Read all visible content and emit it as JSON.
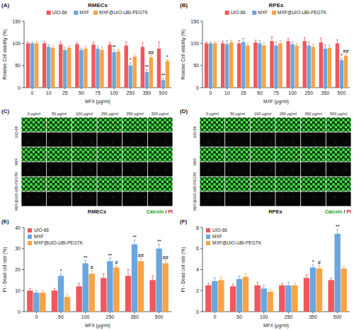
{
  "chart_data": [
    {
      "type": "bar",
      "panel_label": "(A)",
      "title": "RMECs",
      "y_label": "Relative Cell viability (%)",
      "x_label": "MFX (μg/ml)",
      "categories": [
        "0",
        "10",
        "25",
        "50",
        "75",
        "100",
        "250",
        "350",
        "500"
      ],
      "ylim": [
        0,
        150
      ],
      "yticks": [
        0,
        50,
        100,
        150
      ],
      "grid": false,
      "legend": "top",
      "series": [
        {
          "name": "UIO-66",
          "color": "#f0575c",
          "values": [
            100,
            100,
            98,
            98,
            97,
            97,
            95,
            92,
            88
          ],
          "errors": [
            3,
            4,
            5,
            4,
            6,
            5,
            8,
            10,
            15
          ]
        },
        {
          "name": "MXF",
          "color": "#6aa6e0",
          "values": [
            100,
            92,
            85,
            85,
            88,
            80,
            50,
            35,
            17
          ],
          "errors": [
            3,
            5,
            5,
            4,
            6,
            5,
            6,
            5,
            4
          ]
        },
        {
          "name": "MXF@UIO-UBI-PEGTK",
          "color": "#f7a346",
          "values": [
            100,
            90,
            90,
            88,
            85,
            82,
            70,
            68,
            60
          ],
          "errors": [
            3,
            4,
            4,
            5,
            6,
            5,
            5,
            5,
            3
          ]
        }
      ],
      "annotations": [
        {
          "text": "**",
          "category": "100",
          "series": "MXF"
        },
        {
          "text": "*",
          "category": "250",
          "series": "MXF"
        },
        {
          "text": "**",
          "category": "350",
          "series": "MXF"
        },
        {
          "text": "##",
          "category": "350",
          "series": "MXF@UIO-UBI-PEGTK"
        },
        {
          "text": "**",
          "category": "500",
          "series": "MXF"
        },
        {
          "text": "*",
          "category": "500",
          "series": "MXF@UIO-UBI-PEGTK"
        }
      ]
    },
    {
      "type": "bar",
      "panel_label": "(B)",
      "title": "RPEs",
      "y_label": "Relative Cell viability (%)",
      "x_label": "MXF (μg/ml)",
      "categories": [
        "0",
        "10",
        "25",
        "50",
        "75",
        "100",
        "250",
        "350",
        "500"
      ],
      "ylim": [
        0,
        150
      ],
      "yticks": [
        0,
        50,
        100,
        150
      ],
      "grid": false,
      "legend": "top",
      "series": [
        {
          "name": "UIO-66",
          "color": "#f0575c",
          "values": [
            100,
            100,
            100,
            102,
            105,
            105,
            105,
            102,
            100
          ],
          "errors": [
            3,
            5,
            6,
            5,
            10,
            6,
            8,
            10,
            8
          ]
        },
        {
          "name": "MXF",
          "color": "#6aa6e0",
          "values": [
            100,
            98,
            103,
            100,
            95,
            98,
            95,
            88,
            62
          ],
          "errors": [
            3,
            8,
            8,
            6,
            8,
            6,
            8,
            8,
            4
          ]
        },
        {
          "name": "MXF@UIO-UBI-PEGTK",
          "color": "#f7a346",
          "values": [
            100,
            102,
            95,
            95,
            100,
            95,
            92,
            90,
            72
          ],
          "errors": [
            3,
            5,
            6,
            6,
            6,
            5,
            6,
            6,
            4
          ]
        }
      ],
      "annotations": [
        {
          "text": "*",
          "category": "500",
          "series": "MXF"
        },
        {
          "text": "##",
          "category": "500",
          "series": "MXF@UIO-UBI-PEGTK"
        }
      ]
    },
    {
      "type": "bar",
      "panel_label": "(E)",
      "y_label": "PI - Dead cell rate (%)",
      "x_label": "MFX (μg/ml)",
      "categories": [
        "0",
        "50",
        "100",
        "250",
        "350",
        "500"
      ],
      "ylim": [
        0,
        40
      ],
      "yticks": [
        0,
        10,
        20,
        30,
        40
      ],
      "grid": false,
      "legend": "upper left",
      "series": [
        {
          "name": "UIO-66",
          "color": "#f0575c",
          "values": [
            10,
            10,
            12,
            16,
            17,
            15
          ],
          "errors": [
            1,
            1,
            1.5,
            2,
            3,
            2
          ]
        },
        {
          "name": "MXF",
          "color": "#6aa6e0",
          "values": [
            9,
            17,
            23,
            24,
            32,
            30
          ],
          "errors": [
            1,
            1,
            1.5,
            1.5,
            2,
            2
          ]
        },
        {
          "name": "MXF@UIO-UBI-PEGTK",
          "color": "#f7a346",
          "values": [
            9,
            7,
            18,
            21,
            24,
            23
          ],
          "errors": [
            1,
            1,
            1.5,
            1,
            1.5,
            1.5
          ]
        }
      ],
      "annotations": [
        {
          "text": "*",
          "category": "50",
          "series": "MXF"
        },
        {
          "text": "**",
          "category": "100",
          "series": "MXF"
        },
        {
          "text": "#",
          "category": "100",
          "series": "MXF@UIO-UBI-PEGTK"
        },
        {
          "text": "**",
          "category": "250",
          "series": "MXF"
        },
        {
          "text": "#",
          "category": "250",
          "series": "MXF@UIO-UBI-PEGTK"
        },
        {
          "text": "**",
          "category": "350",
          "series": "MXF"
        },
        {
          "text": "##",
          "category": "350",
          "series": "MXF@UIO-UBI-PEGTK"
        },
        {
          "text": "**",
          "category": "500",
          "series": "MXF"
        },
        {
          "text": "##",
          "category": "500",
          "series": "MXF@UIO-UBI-PEGTK"
        }
      ]
    },
    {
      "type": "bar",
      "panel_label": "(F)",
      "y_label": "PI - Dead cell rate (%)",
      "x_label": "MFX (μg/ml)",
      "categories": [
        "0",
        "50",
        "100",
        "250",
        "350",
        "500"
      ],
      "ylim": [
        0,
        8
      ],
      "yticks": [
        0,
        2,
        4,
        6,
        8
      ],
      "grid": false,
      "legend": "upper left",
      "series": [
        {
          "name": "UIO-66",
          "color": "#f0575c",
          "values": [
            2.5,
            2.4,
            2.5,
            2.5,
            3.2,
            3.0
          ],
          "errors": [
            0.2,
            0.2,
            0.3,
            0.2,
            0.3,
            0.2
          ]
        },
        {
          "name": "MXF",
          "color": "#6aa6e0",
          "values": [
            2.9,
            3.1,
            2.2,
            2.5,
            4.2,
            7.4
          ],
          "errors": [
            0.3,
            0.3,
            0.3,
            0.3,
            0.3,
            0.4
          ]
        },
        {
          "name": "MXF@UIO-UBI-PEGTK",
          "color": "#f7a346",
          "values": [
            3.0,
            3.3,
            1.9,
            2.5,
            4.1,
            4.1
          ],
          "errors": [
            0.3,
            0.3,
            0.2,
            0.2,
            0.3,
            0.2
          ]
        }
      ],
      "annotations": [
        {
          "text": "*",
          "category": "350",
          "series": "MXF"
        },
        {
          "text": "#",
          "category": "350",
          "series": "MXF@UIO-UBI-PEGTK"
        },
        {
          "text": "**",
          "category": "500",
          "series": "MXF"
        }
      ]
    }
  ],
  "image_panels": [
    {
      "panel_label": "(C)",
      "columns": [
        "0 μg/ml",
        "50 μg/ml",
        "100 μg/ml",
        "250 μg/ml",
        "350 μg/ml",
        "500 μg/ml"
      ],
      "rows": [
        "UIO-66",
        "MXF",
        "MXF@UIO-UBI-PEGTK"
      ],
      "cell_type": "RMECs",
      "stain_labels": [
        "Calcein",
        "/",
        "PI"
      ]
    },
    {
      "panel_label": "(D)",
      "columns": [
        "0 μg/ml",
        "50 μg/ml",
        "100 μg/ml",
        "250 μg/ml",
        "350 μg/ml",
        "500 μg/ml"
      ],
      "rows": [
        "UIO-66",
        "MXF",
        "MXF@UIO-UBI-PEGTK"
      ],
      "cell_type": "RPEs",
      "stain_labels": [
        "Calcein",
        "/",
        "PI"
      ]
    }
  ]
}
